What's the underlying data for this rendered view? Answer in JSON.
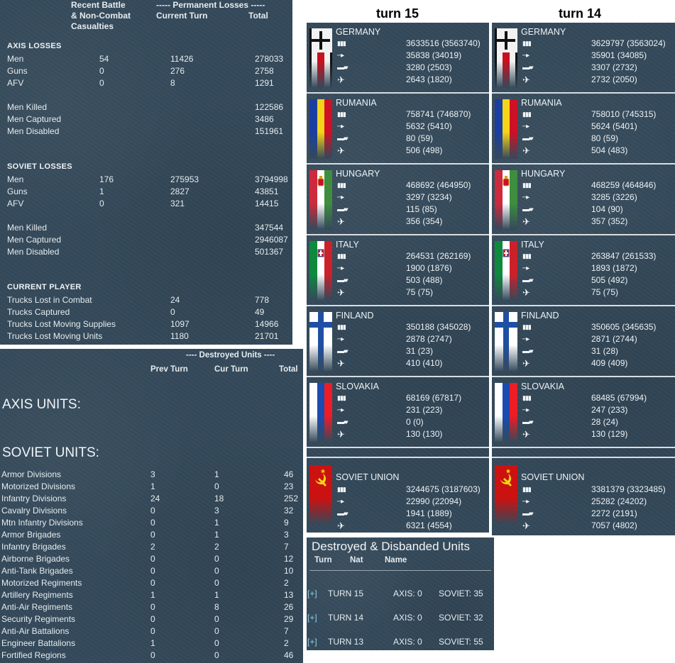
{
  "losses_panel": {
    "col_recent": "Recent Battle\n& Non-Combat\nCasualties",
    "col_perm": "----- Permanent Losses -----",
    "col_current": "Current Turn",
    "col_total": "Total",
    "axis": {
      "title": "AXIS LOSSES",
      "rows": [
        {
          "label": "Men",
          "recent": "54",
          "current": "11426",
          "total": "278033"
        },
        {
          "label": "Guns",
          "recent": "0",
          "current": "276",
          "total": "2758"
        },
        {
          "label": "AFV",
          "recent": "0",
          "current": "8",
          "total": "1291"
        }
      ],
      "detail": [
        {
          "label": "Men Killed",
          "total": "122586"
        },
        {
          "label": "Men Captured",
          "total": "3486"
        },
        {
          "label": "Men Disabled",
          "total": "151961"
        }
      ]
    },
    "soviet": {
      "title": "SOVIET LOSSES",
      "rows": [
        {
          "label": "Men",
          "recent": "176",
          "current": "275953",
          "total": "3794998"
        },
        {
          "label": "Guns",
          "recent": "1",
          "current": "2827",
          "total": "43851"
        },
        {
          "label": "AFV",
          "recent": "0",
          "current": "321",
          "total": "14415"
        }
      ],
      "detail": [
        {
          "label": "Men Killed",
          "total": "347544"
        },
        {
          "label": "Men Captured",
          "total": "2946087"
        },
        {
          "label": "Men Disabled",
          "total": "501367"
        }
      ]
    },
    "player": {
      "title": "CURRENT PLAYER",
      "rows": [
        {
          "label": "Trucks Lost in Combat",
          "current": "24",
          "total": "778"
        },
        {
          "label": "Trucks Captured",
          "current": "0",
          "total": "49"
        },
        {
          "label": "Trucks Lost Moving Supplies",
          "current": "1097",
          "total": "14966"
        },
        {
          "label": "Trucks Lost Moving Units",
          "current": "1180",
          "total": "21701"
        }
      ]
    }
  },
  "destroyed_panel": {
    "header": "---- Destroyed Units ----",
    "col_prev": "Prev Turn",
    "col_cur": "Cur Turn",
    "col_total": "Total",
    "axis_title": "AXIS UNITS:",
    "soviet_title": "SOVIET UNITS:",
    "rows": [
      {
        "label": "Armor Divisions",
        "prev": "3",
        "cur": "1",
        "total": "46"
      },
      {
        "label": "Motorized Divisions",
        "prev": "1",
        "cur": "0",
        "total": "23"
      },
      {
        "label": "Infantry Divisions",
        "prev": "24",
        "cur": "18",
        "total": "252"
      },
      {
        "label": "Cavalry Divisions",
        "prev": "0",
        "cur": "3",
        "total": "32"
      },
      {
        "label": "Mtn Infantry Divisions",
        "prev": "0",
        "cur": "1",
        "total": "9"
      },
      {
        "label": "Armor Brigades",
        "prev": "0",
        "cur": "1",
        "total": "3"
      },
      {
        "label": "Infantry Brigades",
        "prev": "2",
        "cur": "2",
        "total": "7"
      },
      {
        "label": "Airborne Brigades",
        "prev": "0",
        "cur": "0",
        "total": "12"
      },
      {
        "label": "Anti-Tank Brigades",
        "prev": "0",
        "cur": "0",
        "total": "10"
      },
      {
        "label": "Motorized Regiments",
        "prev": "0",
        "cur": "0",
        "total": "2"
      },
      {
        "label": "Artillery Regiments",
        "prev": "1",
        "cur": "1",
        "total": "13"
      },
      {
        "label": "Anti-Air Regiments",
        "prev": "0",
        "cur": "8",
        "total": "26"
      },
      {
        "label": "Security Regiments",
        "prev": "0",
        "cur": "0",
        "total": "29"
      },
      {
        "label": "Anti-Air Battalions",
        "prev": "0",
        "cur": "0",
        "total": "7"
      },
      {
        "label": "Engineer Battalions",
        "prev": "1",
        "cur": "0",
        "total": "2"
      },
      {
        "label": "Fortified Regions",
        "prev": "0",
        "cur": "0",
        "total": "46"
      }
    ]
  },
  "nation_columns": [
    {
      "title": "turn 15",
      "nations": [
        {
          "name": "GERMANY",
          "flag": "germany-war-flag",
          "values": [
            "3633516 (3563740)",
            "35838 (34019)",
            "3280 (2503)",
            "2643 (1820)"
          ]
        },
        {
          "name": "RUMANIA",
          "flag": "romania-flag",
          "values": [
            "758741 (746870)",
            "5632 (5410)",
            "80 (59)",
            "506 (498)"
          ]
        },
        {
          "name": "HUNGARY",
          "flag": "hungary-flag",
          "values": [
            "468692 (464950)",
            "3297 (3234)",
            "115 (85)",
            "356 (354)"
          ]
        },
        {
          "name": "ITALY",
          "flag": "italy-flag",
          "values": [
            "264531 (262169)",
            "1900 (1876)",
            "503 (488)",
            "75 (75)"
          ]
        },
        {
          "name": "FINLAND",
          "flag": "finland-flag",
          "values": [
            "350188 (345028)",
            "2878 (2747)",
            "31 (23)",
            "410 (410)"
          ]
        },
        {
          "name": "SLOVAKIA",
          "flag": "slovakia-flag",
          "values": [
            "68169 (67817)",
            "231 (223)",
            "0 (0)",
            "130 (130)"
          ]
        }
      ],
      "soviet": {
        "name": "SOVIET UNION",
        "flag": "soviet-flag",
        "values": [
          "3244675 (3187603)",
          "22990 (22094)",
          "1941 (1889)",
          "6321 (4554)"
        ]
      }
    },
    {
      "title": "turn 14",
      "nations": [
        {
          "name": "GERMANY",
          "flag": "germany-war-flag",
          "values": [
            "3629797 (3563024)",
            "35901 (34085)",
            "3307 (2732)",
            "2732 (2050)"
          ]
        },
        {
          "name": "RUMANIA",
          "flag": "romania-flag",
          "values": [
            "758010 (745315)",
            "5624 (5401)",
            "80 (59)",
            "504 (483)"
          ]
        },
        {
          "name": "HUNGARY",
          "flag": "hungary-flag",
          "values": [
            "468259 (464846)",
            "3285 (3226)",
            "104 (90)",
            "357 (352)"
          ]
        },
        {
          "name": "ITALY",
          "flag": "italy-flag",
          "values": [
            "263847 (261533)",
            "1893 (1872)",
            "505 (492)",
            "75 (75)"
          ]
        },
        {
          "name": "FINLAND",
          "flag": "finland-flag",
          "values": [
            "350605 (345635)",
            "2871 (2744)",
            "31 (28)",
            "409 (409)"
          ]
        },
        {
          "name": "SLOVAKIA",
          "flag": "slovakia-flag",
          "values": [
            "68485 (67994)",
            "247 (233)",
            "28 (24)",
            "130 (129)"
          ]
        }
      ],
      "soviet": {
        "name": "SOVIET UNION",
        "flag": "soviet-flag",
        "values": [
          "3381379 (3323485)",
          "25282 (24202)",
          "2272 (2191)",
          "7057 (4802)"
        ]
      }
    }
  ],
  "disbanded_panel": {
    "title": "Destroyed & Disbanded Units",
    "col_turn": "Turn",
    "col_nat": "Nat",
    "col_name": "Name",
    "rows": [
      {
        "expand": "[+]",
        "turn": "TURN 15",
        "axis": "AXIS: 0",
        "soviet": "SOVIET: 35"
      },
      {
        "expand": "[+]",
        "turn": "TURN 14",
        "axis": "AXIS: 0",
        "soviet": "SOVIET: 32"
      },
      {
        "expand": "[+]",
        "turn": "TURN 13",
        "axis": "AXIS: 0",
        "soviet": "SOVIET: 55"
      }
    ]
  }
}
